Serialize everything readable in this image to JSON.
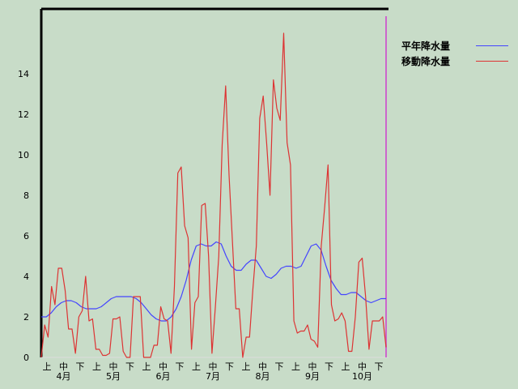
{
  "chart_data": {
    "type": "line",
    "title": "",
    "xlabel": "",
    "ylabel": "",
    "ylim": [
      0,
      16
    ],
    "yticks": [
      "0",
      "2",
      "4",
      "6",
      "8",
      "10",
      "12",
      "14"
    ],
    "x_day_labels": [
      "上",
      "中",
      "下"
    ],
    "months": [
      "4月",
      "5月",
      "6月",
      "7月",
      "8月",
      "9月",
      "10月"
    ],
    "legend": {
      "position": "top-right"
    },
    "series": [
      {
        "name": "平年降水量",
        "color": "#4444ff",
        "values": [
          2.0,
          2.0,
          2.2,
          2.5,
          2.7,
          2.8,
          2.8,
          2.7,
          2.5,
          2.4,
          2.4,
          2.4,
          2.5,
          2.7,
          2.9,
          3.0,
          3.0,
          3.0,
          3.0,
          2.9,
          2.7,
          2.4,
          2.1,
          1.9,
          1.8,
          1.8,
          2.0,
          2.4,
          3.0,
          3.8,
          4.8,
          5.5,
          5.6,
          5.5,
          5.5,
          5.7,
          5.6,
          5.0,
          4.5,
          4.3,
          4.3,
          4.6,
          4.8,
          4.8,
          4.4,
          4.0,
          3.9,
          4.1,
          4.4,
          4.5,
          4.5,
          4.4,
          4.5,
          5.0,
          5.5,
          5.6,
          5.3,
          4.5,
          3.8,
          3.4,
          3.1,
          3.1,
          3.2,
          3.2,
          3.0,
          2.8,
          2.7,
          2.8,
          2.9,
          2.9
        ]
      },
      {
        "name": "移動降水量",
        "color": "#dd3333",
        "values": [
          0,
          1.6,
          1.0,
          3.5,
          2.6,
          4.4,
          4.4,
          3.3,
          1.4,
          1.4,
          0.2,
          2.0,
          2.3,
          4.0,
          1.8,
          1.9,
          0.4,
          0.4,
          0.1,
          0.1,
          0.2,
          1.9,
          1.9,
          2.0,
          0.3,
          0,
          0,
          3.0,
          3.0,
          3.0,
          0,
          0,
          0,
          0.6,
          0.6,
          2.5,
          1.9,
          1.8,
          0.2,
          3.5,
          9.1,
          9.4,
          6.5,
          5.9,
          0.4,
          2.7,
          3.0,
          7.5,
          7.6,
          5.0,
          0.2,
          2.5,
          5.0,
          10.5,
          13.4,
          9.0,
          5.7,
          2.4,
          2.4,
          0,
          1.0,
          1.0,
          3.4,
          5.5,
          11.8,
          12.9,
          10.6,
          8.0,
          13.7,
          12.3,
          11.7,
          16.0,
          10.6,
          9.5,
          1.8,
          1.2,
          1.3,
          1.3,
          1.6,
          0.9,
          0.8,
          0.5,
          5.5,
          7.4,
          9.5,
          2.6,
          1.8,
          1.9,
          2.2,
          1.8,
          0.3,
          0.3,
          2.0,
          4.7,
          4.9,
          3.0,
          0.4,
          1.8,
          1.8,
          1.8,
          2.0,
          0.5
        ]
      }
    ]
  }
}
